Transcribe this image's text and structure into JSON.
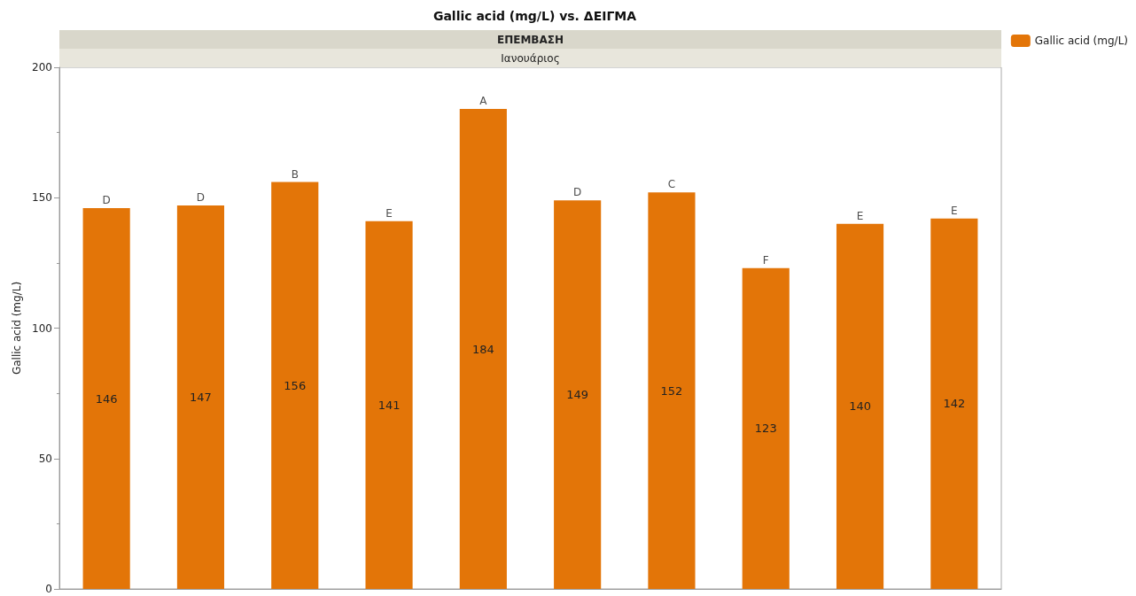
{
  "chart_data": {
    "type": "bar",
    "title": "Gallic acid (mg/L) vs. ΔΕΙΓΜΑ",
    "ylabel": "Gallic acid (mg/L)",
    "categories": [
      null,
      null,
      null,
      null,
      null,
      null,
      null,
      null,
      null,
      null
    ],
    "series": [
      {
        "name": "Gallic acid (mg/L)",
        "color": "#e37508",
        "values": [
          146,
          147,
          156,
          141,
          184,
          149,
          152,
          123,
          140,
          142
        ]
      }
    ],
    "ylim": [
      0,
      200
    ],
    "yticks": [
      0,
      50,
      100,
      150,
      200
    ],
    "grid": false,
    "legend": "top right",
    "data_labels": true,
    "annotations": [
      "ΕΠΕΜΒΑΣΗ",
      "Ιανουάριος",
      {
        "text": "D",
        "y": 146
      },
      {
        "text": "D",
        "y": 147
      },
      {
        "text": "B",
        "y": 156
      },
      {
        "text": "E",
        "y": 141
      },
      {
        "text": "A",
        "y": 184
      },
      {
        "text": "D",
        "y": 149
      },
      {
        "text": "C",
        "y": 152
      },
      {
        "text": "F",
        "y": 123
      },
      {
        "text": "E",
        "y": 140
      },
      {
        "text": "E",
        "y": 142
      }
    ]
  }
}
